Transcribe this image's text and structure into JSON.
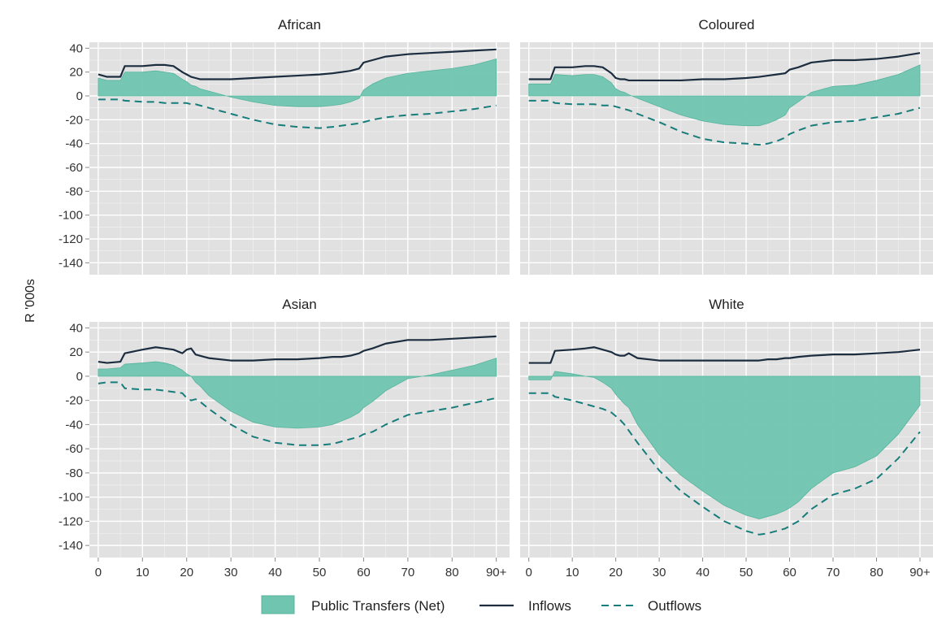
{
  "chart_data": {
    "type": "area",
    "ylabel": "R '000s",
    "xlabel": "",
    "x_ticks": [
      0,
      10,
      20,
      30,
      40,
      50,
      60,
      70,
      80,
      90
    ],
    "x_tick_labels": [
      "0",
      "10",
      "20",
      "30",
      "40",
      "50",
      "60",
      "70",
      "80",
      "90+"
    ],
    "y_ticks": [
      40,
      20,
      0,
      -20,
      -40,
      -60,
      -80,
      -100,
      -120,
      -140
    ],
    "xlim": [
      -2,
      93
    ],
    "ylim": [
      -150,
      45
    ],
    "grid": true,
    "legend": {
      "placement": "bottom",
      "entries": [
        {
          "name": "Public Transfers (Net)",
          "kind": "area",
          "color": "#6fc5b0"
        },
        {
          "name": "Inflows",
          "kind": "solid-line",
          "color": "#1b2d3f"
        },
        {
          "name": "Outflows",
          "kind": "dashed-line",
          "color": "#167d7a"
        }
      ]
    },
    "x": [
      0,
      2,
      5,
      6,
      10,
      13,
      15,
      17,
      19,
      20,
      21,
      22,
      23,
      25,
      30,
      35,
      40,
      45,
      50,
      53,
      55,
      57,
      59,
      60,
      62,
      65,
      70,
      75,
      80,
      85,
      90
    ],
    "facets": [
      {
        "title": "African",
        "inflows": [
          18,
          16,
          16,
          25,
          25,
          26,
          26,
          25,
          20,
          18,
          16,
          15,
          14,
          14,
          14,
          15,
          16,
          17,
          18,
          19,
          20,
          21,
          23,
          28,
          30,
          33,
          35,
          36,
          37,
          38,
          39
        ],
        "outflows": [
          -3,
          -3,
          -3,
          -4,
          -5,
          -5,
          -6,
          -6,
          -6,
          -6,
          -7,
          -7,
          -8,
          -10,
          -15,
          -20,
          -24,
          -26,
          -27,
          -26,
          -25,
          -24,
          -23,
          -22,
          -20,
          -18,
          -16,
          -15,
          -13,
          -11,
          -8
        ],
        "transfers": [
          15,
          13,
          13,
          20,
          20,
          21,
          20,
          19,
          14,
          12,
          9,
          8,
          6,
          4,
          -1,
          -5,
          -8,
          -9,
          -9,
          -8,
          -7,
          -5,
          -2,
          5,
          10,
          15,
          19,
          21,
          23,
          26,
          31
        ]
      },
      {
        "title": "Coloured",
        "inflows": [
          14,
          14,
          14,
          24,
          24,
          25,
          25,
          24,
          19,
          15,
          14,
          14,
          13,
          13,
          13,
          13,
          14,
          14,
          15,
          16,
          17,
          18,
          19,
          22,
          24,
          28,
          30,
          30,
          31,
          33,
          36
        ],
        "outflows": [
          -4,
          -4,
          -4,
          -6,
          -7,
          -7,
          -7,
          -8,
          -8,
          -9,
          -10,
          -11,
          -12,
          -15,
          -22,
          -30,
          -36,
          -39,
          -40,
          -41,
          -40,
          -38,
          -35,
          -32,
          -29,
          -25,
          -22,
          -21,
          -18,
          -15,
          -10
        ],
        "transfers": [
          10,
          10,
          10,
          18,
          17,
          18,
          18,
          16,
          11,
          6,
          4,
          3,
          1,
          -2,
          -9,
          -16,
          -21,
          -24,
          -25,
          -25,
          -23,
          -20,
          -16,
          -10,
          -5,
          3,
          8,
          9,
          13,
          18,
          26
        ]
      },
      {
        "title": "Asian",
        "inflows": [
          12,
          11,
          12,
          19,
          22,
          24,
          23,
          22,
          19,
          22,
          23,
          18,
          17,
          15,
          13,
          13,
          14,
          14,
          15,
          16,
          16,
          17,
          19,
          21,
          23,
          27,
          30,
          30,
          31,
          32,
          33
        ],
        "outflows": [
          -6,
          -5,
          -5,
          -10,
          -11,
          -11,
          -12,
          -13,
          -14,
          -18,
          -20,
          -19,
          -21,
          -27,
          -40,
          -50,
          -55,
          -57,
          -57,
          -56,
          -54,
          -52,
          -50,
          -48,
          -46,
          -40,
          -32,
          -29,
          -26,
          -22,
          -18
        ],
        "transfers": [
          6,
          6,
          7,
          10,
          11,
          12,
          11,
          9,
          5,
          2,
          0,
          -5,
          -8,
          -16,
          -29,
          -38,
          -42,
          -43,
          -42,
          -40,
          -37,
          -34,
          -30,
          -26,
          -21,
          -12,
          -2,
          1,
          5,
          9,
          15
        ]
      },
      {
        "title": "White",
        "inflows": [
          11,
          11,
          11,
          21,
          22,
          23,
          24,
          22,
          20,
          18,
          17,
          17,
          19,
          15,
          13,
          13,
          13,
          13,
          13,
          13,
          14,
          14,
          15,
          15,
          16,
          17,
          18,
          18,
          19,
          20,
          22
        ],
        "outflows": [
          -14,
          -14,
          -14,
          -17,
          -20,
          -23,
          -25,
          -27,
          -30,
          -33,
          -36,
          -40,
          -45,
          -55,
          -78,
          -95,
          -108,
          -120,
          -128,
          -131,
          -130,
          -128,
          -126,
          -124,
          -120,
          -110,
          -98,
          -93,
          -85,
          -68,
          -46
        ],
        "transfers": [
          -3,
          -3,
          -3,
          4,
          2,
          0,
          -1,
          -5,
          -10,
          -15,
          -19,
          -23,
          -26,
          -40,
          -65,
          -82,
          -95,
          -107,
          -115,
          -118,
          -116,
          -114,
          -111,
          -109,
          -104,
          -93,
          -80,
          -75,
          -66,
          -48,
          -24
        ]
      }
    ]
  }
}
